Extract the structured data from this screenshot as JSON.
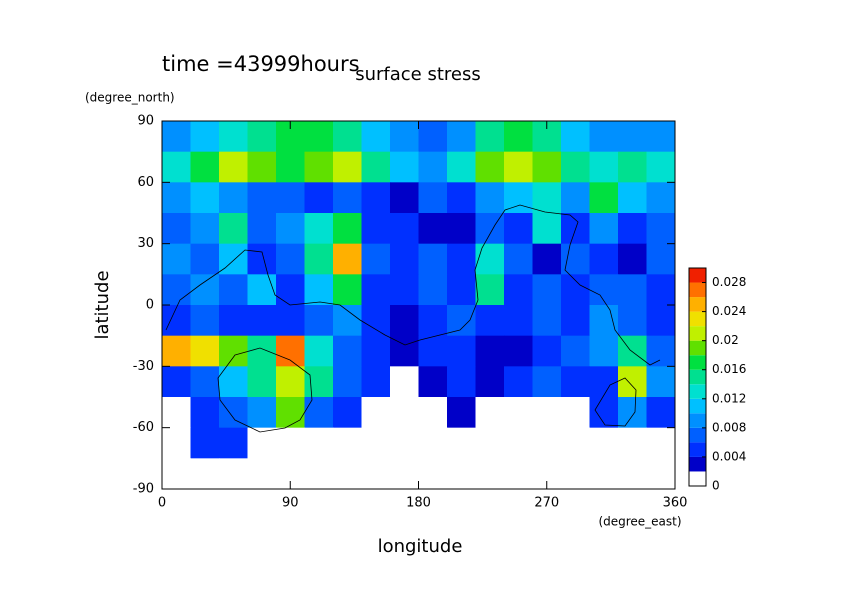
{
  "chart_data": {
    "type": "contour",
    "title": "surface stress",
    "subtitle": "time =43999hours",
    "x_label": "longitude",
    "x_unit": "(degree_east)",
    "y_label": "latitude",
    "y_unit": "(degree_north)",
    "xlim": [
      0,
      360
    ],
    "xticks": [
      0,
      90,
      180,
      270,
      360
    ],
    "ylim": [
      -90,
      90
    ],
    "yticks": [
      -90,
      -60,
      -30,
      0,
      30,
      60,
      90
    ],
    "x": [
      10,
      30,
      50,
      70,
      90,
      110,
      130,
      150,
      170,
      190,
      210,
      230,
      250,
      270,
      290,
      310,
      330,
      350
    ],
    "y": [
      82.5,
      67.5,
      52.5,
      37.5,
      22.5,
      7.5,
      -7.5,
      -22.5,
      -37.5,
      -52.5,
      -67.5,
      -82.5
    ],
    "levels": [
      0,
      0.002,
      0.004,
      0.006,
      0.008,
      0.01,
      0.012,
      0.014,
      0.016,
      0.018,
      0.02,
      0.022,
      0.024,
      0.026,
      0.028,
      0.03
    ],
    "colors": [
      "#ffffff",
      "#0000c8",
      "#0030ff",
      "#0060ff",
      "#0090ff",
      "#00c0ff",
      "#00e0d0",
      "#00e090",
      "#00e040",
      "#60e000",
      "#c0f000",
      "#f0e000",
      "#ffb000",
      "#ff7000",
      "#f02000"
    ],
    "clim": [
      0,
      0.03
    ],
    "cticks": [
      0,
      0.004,
      0.008,
      0.012,
      0.016,
      0.02,
      0.024,
      0.028
    ],
    "values": [
      [
        0.008,
        0.01,
        0.012,
        0.014,
        0.016,
        0.016,
        0.014,
        0.01,
        0.008,
        0.006,
        0.008,
        0.014,
        0.016,
        0.014,
        0.01,
        0.008,
        0.008,
        0.008
      ],
      [
        0.012,
        0.016,
        0.02,
        0.018,
        0.016,
        0.018,
        0.02,
        0.014,
        0.01,
        0.008,
        0.012,
        0.018,
        0.02,
        0.018,
        0.014,
        0.012,
        0.014,
        0.012
      ],
      [
        0.008,
        0.01,
        0.008,
        0.006,
        0.006,
        0.004,
        0.006,
        0.004,
        0.002,
        0.006,
        0.004,
        0.008,
        0.01,
        0.012,
        0.008,
        0.016,
        0.01,
        0.008
      ],
      [
        0.006,
        0.008,
        0.014,
        0.006,
        0.008,
        0.012,
        0.016,
        0.004,
        0.004,
        0.003,
        0.002,
        0.006,
        0.004,
        0.012,
        0.004,
        0.008,
        0.004,
        0.006
      ],
      [
        0.008,
        0.006,
        0.01,
        0.004,
        0.006,
        0.014,
        0.024,
        0.006,
        0.004,
        0.006,
        0.004,
        0.012,
        0.006,
        0.002,
        0.006,
        0.004,
        0.003,
        0.006
      ],
      [
        0.006,
        0.008,
        0.006,
        0.01,
        0.004,
        0.01,
        0.016,
        0.004,
        0.004,
        0.006,
        0.004,
        0.014,
        0.004,
        0.006,
        0.004,
        0.006,
        0.006,
        0.004
      ],
      [
        0.004,
        0.006,
        0.004,
        0.004,
        0.004,
        0.006,
        0.008,
        0.004,
        0.002,
        0.004,
        0.006,
        0.004,
        0.004,
        0.006,
        0.004,
        0.008,
        0.006,
        0.004
      ],
      [
        0.024,
        0.022,
        0.018,
        0.014,
        0.026,
        0.012,
        0.006,
        0.004,
        0.003,
        0.004,
        0.004,
        0.003,
        0.002,
        0.004,
        0.006,
        0.008,
        0.014,
        0.006
      ],
      [
        0.004,
        0.006,
        0.01,
        0.014,
        0.02,
        0.014,
        0.006,
        0.004,
        0,
        0.002,
        0.004,
        0.002,
        0.004,
        0.006,
        0.004,
        0.004,
        0.02,
        0.008
      ],
      [
        0,
        0.004,
        0.006,
        0.008,
        0.018,
        0.006,
        0.004,
        0,
        0,
        0,
        0.002,
        0,
        0,
        0,
        0,
        0.004,
        0.008,
        0.004
      ],
      [
        0,
        0.004,
        0.004,
        0,
        0,
        0,
        0,
        0,
        0,
        0,
        0,
        0,
        0,
        0,
        0,
        0,
        0,
        0
      ],
      [
        0,
        0,
        0,
        0,
        0,
        0,
        0,
        0,
        0,
        0,
        0,
        0,
        0,
        0,
        0,
        0,
        0,
        0
      ]
    ]
  }
}
